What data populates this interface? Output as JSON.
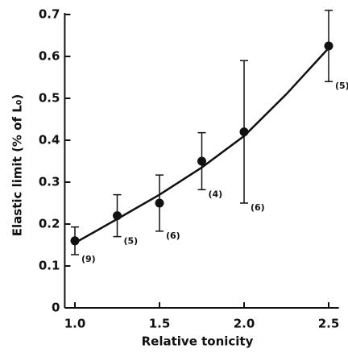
{
  "chart_data": {
    "type": "errorbar",
    "x_label": "Relative tonicity",
    "y_label": "Elastic limit (% of L₀)",
    "x": [
      1.0,
      1.25,
      1.5,
      1.75,
      2.0,
      2.5
    ],
    "values": [
      0.16,
      0.22,
      0.25,
      0.35,
      0.42,
      0.625
    ],
    "errors": [
      0.033,
      0.05,
      0.067,
      0.068,
      0.17,
      0.085
    ],
    "n_labels": [
      "(9)",
      "(5)",
      "(6)",
      "(4)",
      "(6)",
      "(5)"
    ],
    "curve": {
      "x": [
        1.0,
        1.25,
        1.5,
        1.75,
        2.0,
        2.25,
        2.5
      ],
      "values": [
        0.155,
        0.212,
        0.27,
        0.335,
        0.41,
        0.51,
        0.62
      ]
    },
    "color": "#111111",
    "xlim": [
      0.94,
      2.56
    ],
    "ylim": [
      0,
      0.7
    ],
    "xticks": [
      {
        "value": 1,
        "label": "1.0"
      },
      1.5,
      {
        "value": 2,
        "label": "2.0"
      },
      2.5
    ],
    "yticks": [
      0,
      0.1,
      0.2,
      0.3,
      0.4,
      0.5,
      0.6,
      0.7
    ]
  }
}
